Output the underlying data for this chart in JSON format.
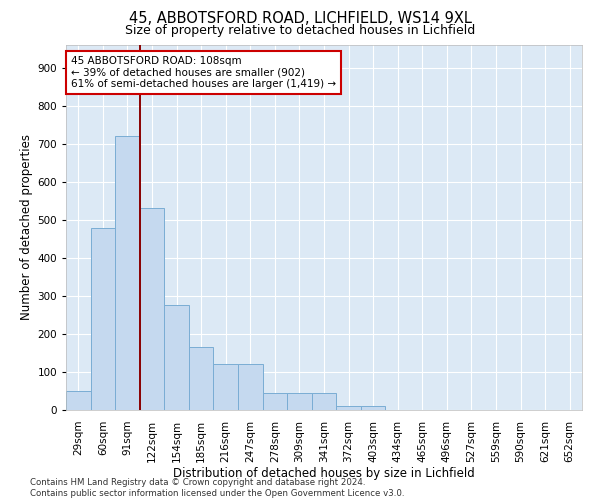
{
  "title1": "45, ABBOTSFORD ROAD, LICHFIELD, WS14 9XL",
  "title2": "Size of property relative to detached houses in Lichfield",
  "xlabel": "Distribution of detached houses by size in Lichfield",
  "ylabel": "Number of detached properties",
  "bar_labels": [
    "29sqm",
    "60sqm",
    "91sqm",
    "122sqm",
    "154sqm",
    "185sqm",
    "216sqm",
    "247sqm",
    "278sqm",
    "309sqm",
    "341sqm",
    "372sqm",
    "403sqm",
    "434sqm",
    "465sqm",
    "496sqm",
    "527sqm",
    "559sqm",
    "590sqm",
    "621sqm",
    "652sqm"
  ],
  "bar_values": [
    50,
    480,
    720,
    530,
    275,
    165,
    120,
    120,
    45,
    45,
    45,
    10,
    10,
    0,
    0,
    0,
    0,
    0,
    0,
    0,
    0
  ],
  "bar_color": "#c5d9ef",
  "bar_edge_color": "#7aadd4",
  "bg_color": "#dce9f5",
  "vline_x": 2.5,
  "vline_color": "#8b0000",
  "annotation_text": "45 ABBOTSFORD ROAD: 108sqm\n← 39% of detached houses are smaller (902)\n61% of semi-detached houses are larger (1,419) →",
  "annotation_box_color": "white",
  "annotation_box_edge": "#cc0000",
  "ylim": [
    0,
    960
  ],
  "yticks": [
    0,
    100,
    200,
    300,
    400,
    500,
    600,
    700,
    800,
    900
  ],
  "footnote": "Contains HM Land Registry data © Crown copyright and database right 2024.\nContains public sector information licensed under the Open Government Licence v3.0.",
  "title_fontsize": 10.5,
  "subtitle_fontsize": 9,
  "axis_label_fontsize": 8.5,
  "tick_fontsize": 7.5,
  "annot_fontsize": 7.5
}
